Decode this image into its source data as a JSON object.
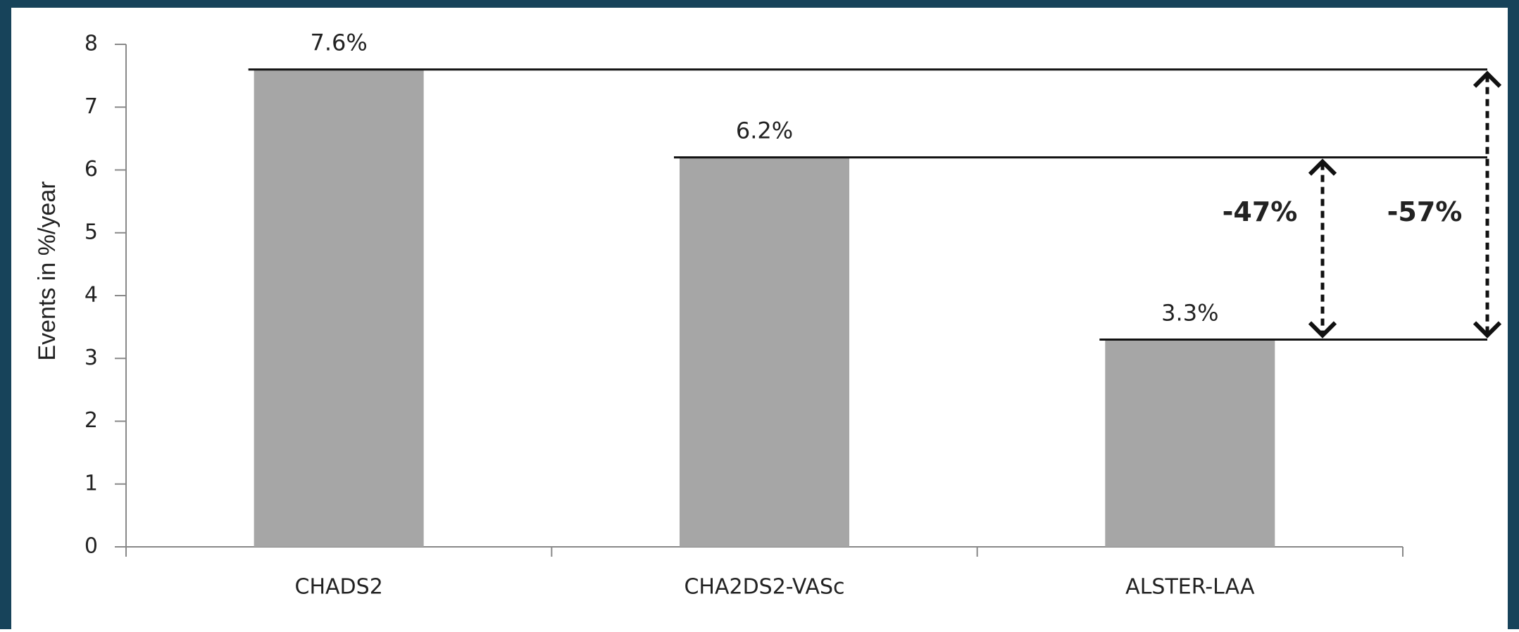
{
  "chart_data": {
    "type": "bar",
    "ylabel": "Events in %/year",
    "categories": [
      "CHADS2",
      "CHA2DS2-VASc",
      "ALSTER-LAA"
    ],
    "values": [
      7.6,
      6.2,
      3.3
    ],
    "value_labels": [
      "7.6%",
      "6.2%",
      "3.3%"
    ],
    "color": "#a6a6a6",
    "ylim": [
      0,
      8
    ],
    "yticks": [
      0,
      1,
      2,
      3,
      4,
      5,
      6,
      7,
      8
    ],
    "annotations": [
      "-47%",
      "-57%"
    ]
  }
}
